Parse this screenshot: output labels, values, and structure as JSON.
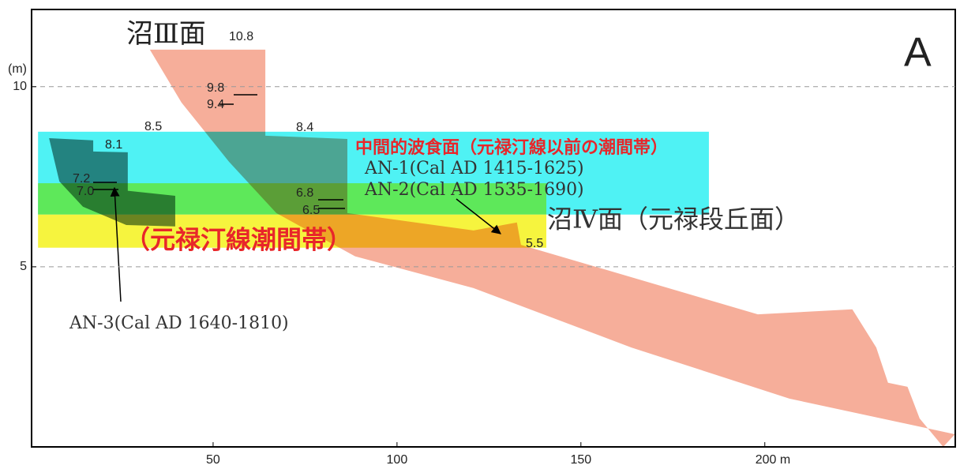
{
  "chart_data": {
    "type": "profile",
    "title": "沼Ⅲ面",
    "panel": "A",
    "y_label": "(m)",
    "xlim": [
      0,
      252
    ],
    "ylim": [
      0,
      12.1
    ],
    "xticks": [
      50,
      100,
      150,
      {
        "value": 200,
        "label": "200 m"
      }
    ],
    "yticks": [
      5,
      10
    ],
    "grid": true,
    "zones": [
      {
        "color": "#4ff2f4",
        "x": [
          2.4,
          184.8
        ],
        "y": [
          6.45,
          8.75
        ]
      },
      {
        "color": "#5ee85a",
        "x": [
          2.4,
          140.6
        ],
        "y": [
          6.45,
          7.32
        ]
      },
      {
        "color": "#f6f43e",
        "x": [
          2.4,
          140.6
        ],
        "y": [
          5.53,
          6.45
        ]
      }
    ],
    "shapes": [
      {
        "color": "#f6ae9a",
        "x": [
          32.8,
          64.2,
          64.2,
          86.5,
          86.5,
          120.8,
          132.6,
          133.7,
          198.1,
          223.8,
          230.3,
          233.5,
          238.8,
          242.1,
          248.5,
          251.7,
          206.7,
          163.7,
          120.8,
          88.6,
          67.2,
          54.3,
          41.4
        ],
        "y": [
          11.03,
          11.03,
          8.64,
          8.55,
          6.49,
          6.01,
          6.23,
          5.61,
          3.68,
          3.82,
          2.76,
          1.78,
          1.67,
          0.79,
          0,
          0.35,
          1.34,
          2.76,
          4.41,
          5.29,
          6.49,
          7.92,
          9.56
        ]
      },
      {
        "color": "#6f8a86",
        "x": [
          5.4,
          17.4,
          17.4,
          26.8,
          26.8,
          39.7,
          39.7,
          26.4,
          14.6,
          8.2
        ],
        "y": [
          8.57,
          8.51,
          8.2,
          8.18,
          7.11,
          6.97,
          6.12,
          6.16,
          6.67,
          7.37
        ]
      }
    ],
    "spot_heights": [
      10.8,
      9.8,
      9.4,
      8.5,
      8.4,
      8.1,
      7.2,
      7.0,
      6.8,
      6.5,
      5.5
    ],
    "annotations": [
      "中間的波食面（元禄汀線以前の潮間帯）",
      "AN-1(Cal AD 1415-1625)",
      "AN-2(Cal AD 1535-1690)",
      "沼Ⅳ面（元禄段丘面）",
      "（元禄汀線潮間帯）",
      "AN-3(Cal AD 1640-1810)"
    ]
  }
}
